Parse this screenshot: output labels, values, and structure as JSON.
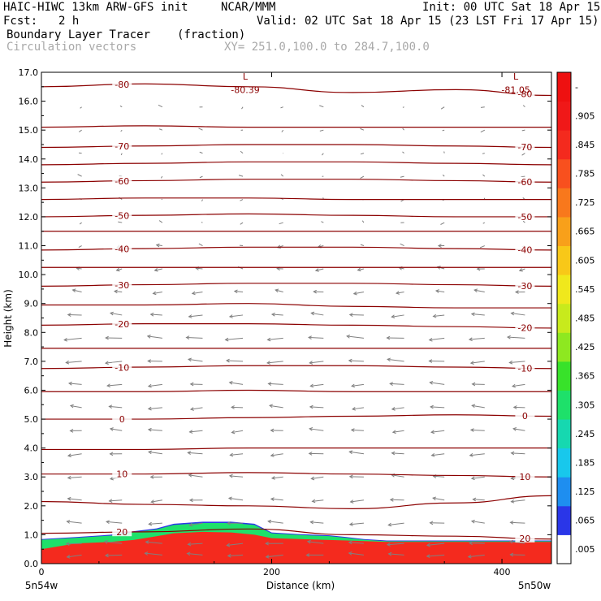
{
  "header": {
    "model": "HAIC-HIWC 13km ARW-GFS init",
    "org": "NCAR/MMM",
    "init": "Init: 00 UTC Sat 18 Apr 15",
    "fcst_label": "Fcst:",
    "fcst_value": "2 h",
    "valid": "Valid: 02 UTC Sat 18 Apr 15 (23 LST Fri 17 Apr 15)",
    "field_name": "Boundary Layer Tracer",
    "field_units": "(fraction)",
    "vector_name": "Circulation vectors",
    "cross_section": "XY= 251.0,100.0 to 284.7,100.0"
  },
  "chart_data": {
    "type": "heatmap",
    "title": "Boundary Layer Tracer (fraction)",
    "xlabel": "Distance (km)",
    "ylabel": "Height (km)",
    "xlim": [
      0,
      443
    ],
    "ylim": [
      0,
      17
    ],
    "x_ticks": [
      "0",
      "200",
      "400"
    ],
    "x_tick_values": [
      0,
      200,
      400
    ],
    "x_end_labels": {
      "left": "5n54w",
      "right": "5n50w"
    },
    "y_ticks": [
      "0.0",
      "1.0",
      "2.0",
      "3.0",
      "4.0",
      "5.0",
      "6.0",
      "7.0",
      "8.0",
      "9.0",
      "10.0",
      "11.0",
      "12.0",
      "13.0",
      "14.0",
      "15.0",
      "16.0",
      "17.0"
    ],
    "colorbar": {
      "labels": [
        ".005",
        ".065",
        ".125",
        ".185",
        ".245",
        ".305",
        ".365",
        ".425",
        ".485",
        ".545",
        ".605",
        ".665",
        ".725",
        ".785",
        ".845",
        ".905"
      ],
      "top_label": "-",
      "colors": [
        "#ffffff",
        "#2a36e8",
        "#1e8ef0",
        "#18c8ec",
        "#16d8b0",
        "#1ee06a",
        "#38e22a",
        "#8ee820",
        "#c8ea1c",
        "#f0e81c",
        "#f8c818",
        "#f8a01a",
        "#f8781c",
        "#f8501e",
        "#f42a1e",
        "#f01818",
        "#ee1010"
      ]
    },
    "tracer_profile": {
      "x": [
        0,
        30,
        60,
        80,
        100,
        115,
        140,
        165,
        185,
        200,
        225,
        250,
        265,
        280,
        300,
        340,
        380,
        420,
        443
      ],
      "top_height": [
        0.85,
        0.92,
        1.0,
        1.12,
        1.22,
        1.38,
        1.45,
        1.45,
        1.38,
        1.08,
        1.02,
        0.98,
        0.92,
        0.85,
        0.8,
        0.8,
        0.8,
        0.8,
        0.8
      ],
      "red_top_height": [
        0.5,
        0.7,
        0.75,
        0.82,
        0.95,
        1.05,
        1.1,
        1.08,
        1.0,
        0.88,
        0.85,
        0.82,
        0.8,
        0.78,
        0.75,
        0.75,
        0.75,
        0.75,
        0.75
      ]
    },
    "temperature_contours": [
      {
        "value": -80,
        "label": "-80",
        "heights": [
          16.5,
          16.6,
          16.5,
          16.3,
          16.4,
          16.2
        ]
      },
      {
        "value": -75,
        "label": "",
        "heights": [
          15.1,
          15.15,
          15.1,
          15.1,
          15.1,
          15.1
        ]
      },
      {
        "value": -70,
        "label": "-70",
        "heights": [
          14.4,
          14.45,
          14.5,
          14.5,
          14.45,
          14.4
        ]
      },
      {
        "value": -65,
        "label": "",
        "heights": [
          13.8,
          13.85,
          13.9,
          13.9,
          13.85,
          13.8
        ]
      },
      {
        "value": -60,
        "label": "-60",
        "heights": [
          13.2,
          13.25,
          13.3,
          13.3,
          13.25,
          13.2
        ]
      },
      {
        "value": -55,
        "label": "",
        "heights": [
          12.6,
          12.65,
          12.65,
          12.6,
          12.6,
          12.6
        ]
      },
      {
        "value": -50,
        "label": "-50",
        "heights": [
          12.0,
          12.05,
          12.1,
          12.05,
          12.0,
          12.0
        ]
      },
      {
        "value": -45,
        "label": "",
        "heights": [
          11.5,
          11.5,
          11.5,
          11.5,
          11.5,
          11.5
        ]
      },
      {
        "value": -40,
        "label": "-40",
        "heights": [
          10.85,
          10.9,
          10.95,
          10.95,
          10.9,
          10.85
        ]
      },
      {
        "value": -35,
        "label": "",
        "heights": [
          10.25,
          10.25,
          10.25,
          10.25,
          10.25,
          10.25
        ]
      },
      {
        "value": -30,
        "label": "-30",
        "heights": [
          9.6,
          9.65,
          9.7,
          9.7,
          9.65,
          9.6
        ]
      },
      {
        "value": -25,
        "label": "",
        "heights": [
          8.95,
          8.95,
          9.0,
          8.9,
          8.85,
          8.85
        ]
      },
      {
        "value": -20,
        "label": "-20",
        "heights": [
          8.25,
          8.3,
          8.3,
          8.25,
          8.2,
          8.15
        ]
      },
      {
        "value": -15,
        "label": "",
        "heights": [
          7.45,
          7.45,
          7.45,
          7.45,
          7.45,
          7.45
        ]
      },
      {
        "value": -10,
        "label": "-10",
        "heights": [
          6.75,
          6.8,
          6.85,
          6.85,
          6.8,
          6.75
        ]
      },
      {
        "value": -5,
        "label": "",
        "heights": [
          5.95,
          5.95,
          6.0,
          5.95,
          5.95,
          5.95
        ]
      },
      {
        "value": 0,
        "label": "0",
        "heights": [
          5.0,
          5.0,
          5.05,
          5.1,
          5.15,
          5.1
        ]
      },
      {
        "value": 5,
        "label": "",
        "heights": [
          3.95,
          3.95,
          4.0,
          4.0,
          4.0,
          4.0
        ]
      },
      {
        "value": 10,
        "label": "10",
        "heights": [
          3.1,
          3.1,
          3.15,
          3.1,
          3.05,
          3.0
        ]
      },
      {
        "value": 15,
        "label": "",
        "heights": [
          2.15,
          2.05,
          2.0,
          1.9,
          2.1,
          2.35
        ]
      },
      {
        "value": 20,
        "label": "20",
        "heights": [
          1.05,
          1.1,
          1.2,
          1.0,
          0.95,
          0.85
        ]
      }
    ],
    "contour_x": [
      0,
      90,
      180,
      270,
      360,
      443
    ],
    "extrema_labels": [
      {
        "mark": "L",
        "value": "-80.39",
        "x": 170,
        "y": 16.4
      },
      {
        "mark": "L",
        "value": "-81.05",
        "x": 405,
        "y": 16.4
      }
    ],
    "vector_field": {
      "x_positions": [
        35,
        70,
        105,
        140,
        175,
        210,
        245,
        280,
        315,
        350,
        385,
        420
      ],
      "levels": [
        0.3,
        0.7,
        1.4,
        2.2,
        3.0,
        3.8,
        4.6,
        5.4,
        6.2,
        7.0,
        7.8,
        8.6,
        9.4,
        10.2,
        11.0,
        11.8,
        12.6,
        13.4,
        14.2,
        15.0,
        15.8
      ],
      "u_by_level": [
        -0.9,
        -0.9,
        -0.8,
        -0.7,
        -0.7,
        -0.75,
        -0.7,
        -0.7,
        -0.75,
        -0.85,
        -0.9,
        -0.7,
        -0.5,
        -0.35,
        -0.25,
        -0.15,
        -0.1,
        -0.15,
        -0.1,
        -0.15,
        -0.15
      ]
    }
  }
}
